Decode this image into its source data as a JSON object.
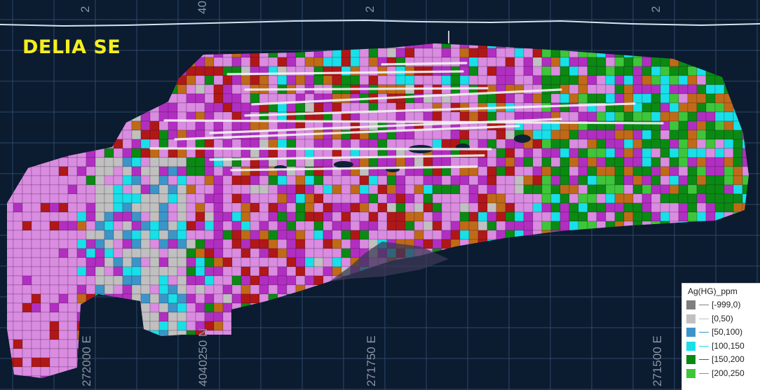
{
  "title": "DELIA SE",
  "grid_top_labels": [
    "2",
    "40",
    "2",
    "2"
  ],
  "grid_bottom_labels": [
    "272000 E",
    "4040250 N",
    "271750 E",
    "271500 E"
  ],
  "legend": {
    "title": "Ag(HG)_ppm",
    "items": [
      {
        "label": "[-999,0)",
        "color": "#7f7f7f"
      },
      {
        "label": "[0,50)",
        "color": "#c0c0c0"
      },
      {
        "label": "[50,100)",
        "color": "#3c95c8"
      },
      {
        "label": "[100,150",
        "color": "#19e0e8"
      },
      {
        "label": "[150,200",
        "color": "#0a8a12"
      },
      {
        "label": "[200,250",
        "color": "#3ec63a"
      }
    ]
  },
  "palette": {
    "background": "#0b1b30",
    "grid": "#2e4868",
    "pink": "#d98ce0",
    "magenta": "#b12fc0",
    "red": "#b01818",
    "orange": "#c06a18",
    "title": "#f5ef1c"
  }
}
